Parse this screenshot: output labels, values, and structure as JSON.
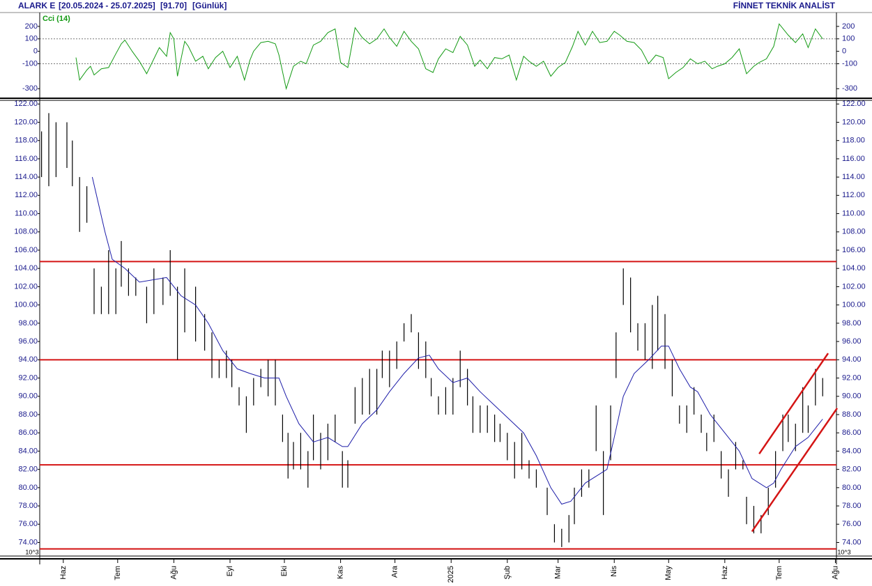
{
  "header": {
    "symbol": "ALARK E",
    "range": "[20.05.2024 - 25.07.2025]",
    "last": "[91.70]",
    "period": "[Günlük]",
    "brand": "FİNNET TEKNİK ANALİST"
  },
  "chart_data": [
    {
      "type": "line",
      "title": "Cci (14)",
      "color": "#139a13",
      "xlim": [
        -1,
        438.6
      ],
      "ylim": [
        -360,
        300
      ],
      "yticks": [
        200,
        100,
        0,
        -100,
        -300
      ],
      "ref_lines": [
        100,
        -100
      ],
      "x": [
        19,
        21,
        25,
        27,
        29,
        33,
        37,
        41,
        44,
        46,
        50,
        54,
        58,
        62,
        65,
        69,
        71,
        73,
        75,
        79,
        81,
        85,
        89,
        92,
        96,
        100,
        104,
        108,
        112,
        115,
        117,
        121,
        125,
        129,
        131,
        135,
        139,
        143,
        146,
        150,
        154,
        158,
        162,
        165,
        169,
        173,
        177,
        181,
        185,
        189,
        192,
        196,
        200,
        204,
        208,
        212,
        216,
        219,
        223,
        227,
        231,
        235,
        239,
        242,
        246,
        250,
        254,
        258,
        262,
        266,
        269,
        273,
        277,
        281,
        285,
        289,
        293,
        296,
        300,
        304,
        308,
        312,
        316,
        319,
        323,
        327,
        331,
        335,
        339,
        343,
        346,
        350,
        354,
        358,
        362,
        366,
        370,
        373,
        377,
        381,
        385,
        389,
        393,
        396,
        400,
        404,
        407,
        412,
        416,
        420,
        423,
        427,
        431
      ],
      "values": [
        -50,
        -230,
        -150,
        -120,
        -190,
        -140,
        -130,
        -20,
        60,
        90,
        0,
        -80,
        -180,
        -60,
        30,
        -40,
        150,
        100,
        -200,
        80,
        40,
        -80,
        -40,
        -140,
        -50,
        0,
        -130,
        -40,
        -230,
        -70,
        0,
        70,
        80,
        60,
        -30,
        -300,
        -120,
        -80,
        -100,
        50,
        80,
        150,
        180,
        -90,
        -130,
        190,
        110,
        60,
        100,
        180,
        110,
        40,
        160,
        80,
        20,
        -140,
        -170,
        -60,
        20,
        -10,
        120,
        50,
        -120,
        -70,
        -140,
        -50,
        -60,
        -30,
        -230,
        -40,
        -80,
        -120,
        -80,
        -200,
        -130,
        -90,
        40,
        160,
        50,
        160,
        70,
        80,
        160,
        130,
        80,
        70,
        10,
        -100,
        -30,
        -50,
        -220,
        -170,
        -130,
        -60,
        -100,
        -80,
        -140,
        -120,
        -100,
        -50,
        20,
        -180,
        -120,
        -90,
        -60,
        40,
        220,
        130,
        70,
        140,
        30,
        180,
        100
      ]
    },
    {
      "type": "hilo",
      "color": "#000000",
      "scale_note": "10^3",
      "xlim": [
        -1,
        438.6
      ],
      "ylim": [
        73.2,
        122.4
      ],
      "yticks": [
        {
          "value": 74,
          "label": "74.00"
        },
        {
          "value": 76,
          "label": "76.00"
        },
        {
          "value": 78,
          "label": "78.00"
        },
        {
          "value": 80,
          "label": "80.00"
        },
        {
          "value": 82,
          "label": "82.00"
        },
        {
          "value": 84,
          "label": "84.00"
        },
        {
          "value": 86,
          "label": "86.00"
        },
        {
          "value": 88,
          "label": "88.00"
        },
        {
          "value": 90,
          "label": "90.00"
        },
        {
          "value": 92,
          "label": "92.00"
        },
        {
          "value": 94,
          "label": "94.00"
        },
        {
          "value": 96,
          "label": "96.00"
        },
        {
          "value": 98,
          "label": "98.00"
        },
        {
          "value": 100,
          "label": "100.00"
        },
        {
          "value": 102,
          "label": "102.00"
        },
        {
          "value": 104,
          "label": "104.00"
        },
        {
          "value": 106,
          "label": "106.00"
        },
        {
          "value": 108,
          "label": "108.00"
        },
        {
          "value": 110,
          "label": "110.00"
        },
        {
          "value": 112,
          "label": "112.00"
        },
        {
          "value": 114,
          "label": "114.00"
        },
        {
          "value": 116,
          "label": "116.00"
        },
        {
          "value": 118,
          "label": "118.00"
        },
        {
          "value": 120,
          "label": "120.00"
        },
        {
          "value": 122,
          "label": "122.00"
        }
      ],
      "xticks": [
        {
          "value": 12,
          "label": "Haz"
        },
        {
          "value": 42,
          "label": "Tem"
        },
        {
          "value": 73,
          "label": "Ağu"
        },
        {
          "value": 104,
          "label": "Eyl"
        },
        {
          "value": 134,
          "label": "Eki"
        },
        {
          "value": 165,
          "label": "Kas"
        },
        {
          "value": 195,
          "label": "Ara"
        },
        {
          "value": 226,
          "label": "2025"
        },
        {
          "value": 257,
          "label": "Şub"
        },
        {
          "value": 285,
          "label": "Mar"
        },
        {
          "value": 316,
          "label": "Nis"
        },
        {
          "value": 346,
          "label": "May"
        },
        {
          "value": 377,
          "label": "Haz"
        },
        {
          "value": 407,
          "label": "Tem"
        },
        {
          "value": 438,
          "label": "Ağu"
        }
      ],
      "x": [
        0,
        4,
        8,
        14,
        17,
        21,
        25,
        29,
        33,
        37,
        41,
        44,
        48,
        52,
        58,
        62,
        67,
        71,
        75,
        79,
        85,
        90,
        94,
        98,
        102,
        105,
        109,
        113,
        117,
        121,
        125,
        129,
        133,
        136,
        139,
        143,
        147,
        150,
        154,
        158,
        162,
        166,
        169,
        173,
        177,
        181,
        185,
        188,
        192,
        196,
        200,
        204,
        208,
        212,
        215,
        219,
        223,
        227,
        231,
        235,
        238,
        242,
        246,
        250,
        253,
        257,
        261,
        265,
        269,
        273,
        279,
        283,
        287,
        291,
        294,
        298,
        302,
        306,
        310,
        314,
        317,
        321,
        325,
        329,
        333,
        337,
        340,
        344,
        348,
        352,
        356,
        360,
        364,
        367,
        371,
        375,
        379,
        383,
        387,
        389,
        393,
        397,
        401,
        405,
        409,
        412,
        416,
        420,
        423,
        427,
        431
      ],
      "high": [
        119,
        121,
        120,
        120,
        118,
        114,
        113,
        104,
        102,
        106,
        104,
        107,
        104,
        103,
        102,
        104,
        103,
        106,
        102,
        104,
        102,
        99,
        97,
        94,
        95,
        94,
        91,
        90,
        92,
        93,
        94,
        94,
        88,
        86,
        85,
        86,
        84,
        88,
        86,
        87,
        88,
        84,
        83,
        91,
        92,
        93,
        93,
        95,
        95,
        96,
        98,
        99,
        97,
        96,
        92,
        90,
        91,
        92,
        95,
        93,
        90,
        89,
        89,
        88,
        87,
        86,
        85,
        86,
        83,
        82,
        80,
        76,
        75.5,
        77,
        80,
        82,
        82,
        89,
        84,
        89,
        97,
        104,
        103,
        98,
        98,
        100,
        101,
        99,
        94,
        89,
        89,
        91,
        88,
        86,
        88,
        84,
        82,
        85,
        83,
        79,
        78,
        77,
        80,
        84,
        88,
        88,
        87,
        91,
        89,
        93,
        92
      ],
      "low": [
        114,
        113,
        114,
        115,
        113,
        108,
        109,
        99,
        99,
        99,
        99,
        102,
        101,
        101,
        98,
        99,
        100,
        101,
        94,
        97,
        96,
        95,
        92,
        92,
        92,
        91,
        89,
        86,
        89,
        91,
        90,
        89,
        85,
        81,
        82,
        82,
        80,
        83,
        82,
        83,
        85,
        80,
        80,
        87,
        88,
        88,
        88,
        92,
        91,
        93,
        96,
        97,
        93,
        92,
        90,
        88,
        88,
        88,
        91,
        89,
        86,
        86,
        86,
        85,
        85,
        83,
        81,
        82,
        81,
        80,
        77,
        74,
        73.5,
        74,
        76,
        79,
        80,
        84,
        77,
        83,
        92,
        100,
        97,
        95,
        94,
        93,
        95,
        93,
        90,
        87,
        86,
        88,
        86,
        84,
        85,
        81,
        79,
        82,
        82,
        76,
        75,
        75,
        77,
        80,
        84,
        85,
        84,
        86,
        86,
        89,
        90
      ],
      "average": {
        "color": "#1c1ca8",
        "x": [
          28,
          35,
          39,
          46,
          54,
          69,
          77,
          85,
          92,
          100,
          108,
          115,
          123,
          131,
          135,
          142,
          150,
          158,
          166,
          169,
          177,
          185,
          192,
          200,
          208,
          214,
          219,
          227,
          235,
          242,
          250,
          258,
          266,
          273,
          281,
          287,
          292,
          300,
          308,
          312,
          316,
          321,
          327,
          335,
          342,
          346,
          352,
          358,
          362,
          369,
          377,
          385,
          392,
          400,
          404,
          408,
          416,
          423,
          429,
          431
        ],
        "values": [
          114,
          108,
          105,
          104,
          102.5,
          103,
          101,
          100,
          98,
          95,
          93,
          92.5,
          92,
          92,
          90,
          87,
          85,
          85.5,
          84.5,
          84.5,
          87,
          88.5,
          90.5,
          92.5,
          94.2,
          94.5,
          93,
          91.5,
          92,
          90.5,
          89,
          87.5,
          86,
          83.5,
          80,
          78.2,
          78.5,
          80.5,
          81.5,
          82,
          85.5,
          90,
          92.5,
          94,
          95.5,
          95.5,
          93,
          91,
          90.5,
          88,
          86,
          84,
          81,
          80,
          80.5,
          82,
          84.5,
          85.5,
          87,
          87.5
        ]
      },
      "levels": {
        "color": "#d41414",
        "values": [
          104.75,
          94,
          82.5,
          73.3
        ]
      },
      "trendlines": [
        {
          "x": [
            396,
            434
          ],
          "values": [
            83.7,
            94.7
          ]
        },
        {
          "x": [
            392,
            439
          ],
          "values": [
            75.2,
            88.7
          ]
        }
      ]
    }
  ]
}
